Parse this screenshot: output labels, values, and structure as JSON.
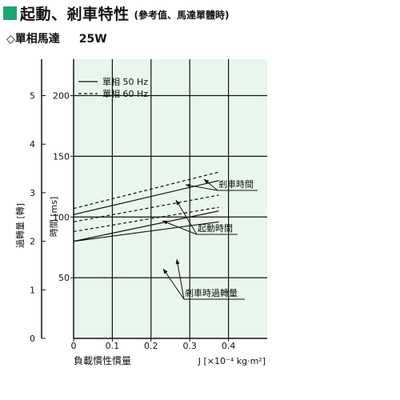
{
  "header": {
    "title": "起動、剎車特性",
    "note": "(參考值、馬達單體時)",
    "motor_label": "◇單相馬達",
    "power": "25W"
  },
  "colors": {
    "accent": "#1ba870",
    "plot_bg": "#e9f6ee",
    "line": "#111111"
  },
  "chart_data": {
    "type": "line",
    "x": [
      0,
      0.1,
      0.2,
      0.3,
      0.4
    ],
    "x_tick_labels": [
      "0",
      "0.1",
      "0.2",
      "0.3",
      "0.4"
    ],
    "xlim": [
      0,
      0.5
    ],
    "xlabel_left": "負載慣性慣量",
    "xlabel_right": "J [×10⁻⁴ kg·m²]",
    "ylabel_time": "時間 [ms]",
    "ylim_time": [
      0,
      230
    ],
    "yticks_time": [
      50,
      100,
      150,
      200
    ],
    "ylabel_turns": "過轉量 [轉]",
    "ylim_turns": [
      0,
      5.75
    ],
    "yticks_turns": [
      0,
      1,
      2,
      3,
      4,
      5
    ],
    "grid": true,
    "legend": {
      "placement": "top-left",
      "entries": [
        {
          "label": "單相 50 Hz",
          "style": "solid"
        },
        {
          "label": "單相 60 Hz",
          "style": "dashed"
        }
      ]
    },
    "series": [
      {
        "group": "剎車時間",
        "style": "solid",
        "axis": "time",
        "x": [
          0,
          0.375
        ],
        "y": [
          102,
          130
        ]
      },
      {
        "group": "剎車時間",
        "style": "dashed",
        "axis": "time",
        "x": [
          0,
          0.375
        ],
        "y": [
          107,
          137
        ]
      },
      {
        "group": "起動時間",
        "style": "solid",
        "axis": "time",
        "x": [
          0,
          0.375
        ],
        "y": [
          80,
          105
        ]
      },
      {
        "group": "起動時間",
        "style": "dashed",
        "axis": "time",
        "x": [
          0,
          0.375
        ],
        "y": [
          96,
          118
        ]
      },
      {
        "group": "剎車時過轉量",
        "style": "solid",
        "axis": "turns",
        "x": [
          0,
          0.375
        ],
        "y": [
          2.0,
          2.4
        ]
      },
      {
        "group": "剎車時過轉量",
        "style": "dashed",
        "axis": "turns",
        "x": [
          0,
          0.375
        ],
        "y": [
          2.2,
          2.7
        ]
      }
    ],
    "annotations": [
      "剎車時間",
      "起動時間",
      "剎車時過轉量"
    ]
  }
}
